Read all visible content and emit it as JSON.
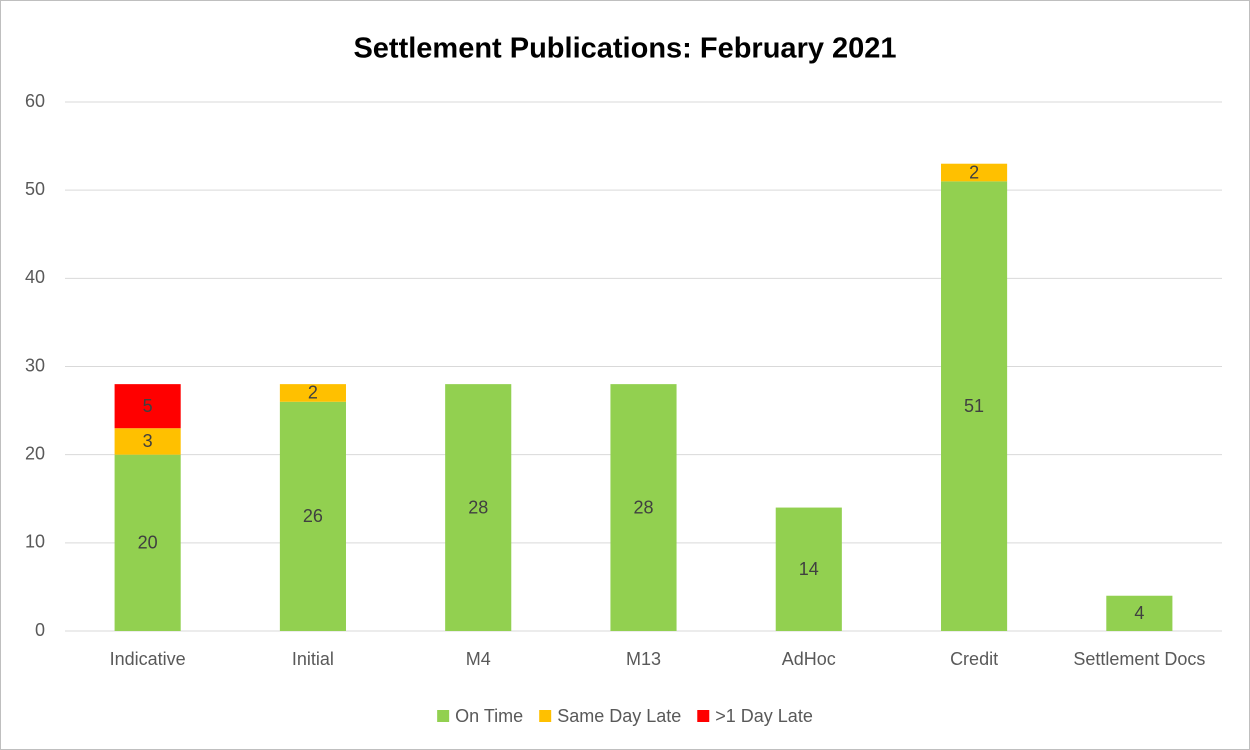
{
  "chart_data": {
    "type": "stacked_bar",
    "title": "Settlement Publications: February 2021",
    "categories": [
      "Indicative",
      "Initial",
      "M4",
      "M13",
      "AdHoc",
      "Credit",
      "Settlement Docs"
    ],
    "series": [
      {
        "name": "On Time",
        "color": "#92d050",
        "values": [
          20,
          26,
          28,
          28,
          14,
          51,
          4
        ]
      },
      {
        "name": "Same Day Late",
        "color": "#ffc000",
        "values": [
          3,
          2,
          null,
          null,
          null,
          2,
          null
        ]
      },
      {
        "name": ">1 Day Late",
        "color": "#ff0000",
        "values": [
          5,
          null,
          null,
          null,
          null,
          null,
          null
        ]
      }
    ],
    "ylim": [
      0,
      60
    ],
    "yticks": [
      0,
      10,
      20,
      30,
      40,
      50,
      60
    ],
    "grid": true,
    "legend": "bottom"
  }
}
